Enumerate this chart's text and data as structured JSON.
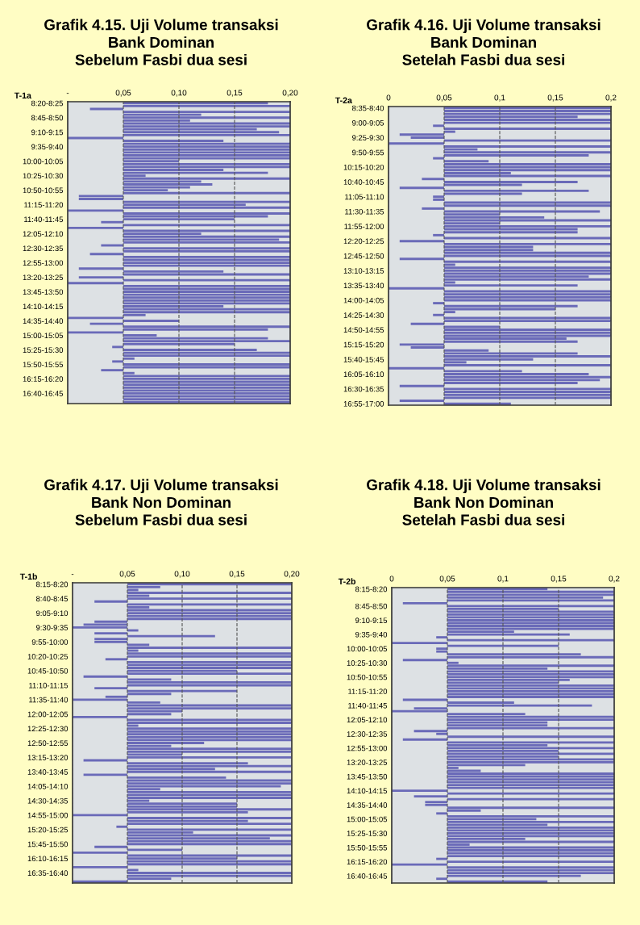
{
  "chart_data": [
    {
      "type": "bar",
      "orientation": "horizontal",
      "title": "Grafik 4.15. Uji Volume transaksi\nBank Dominan\nSebelum Fasbi dua sesi",
      "ylabel": "T-1a",
      "color": "#6a6ab8",
      "grid": "x",
      "line_style": "dashed",
      "xlim": [
        0,
        0.2
      ],
      "xticks": [
        {
          "value": 0,
          "label": "-"
        },
        {
          "value": 0.05,
          "label": "0,05"
        },
        {
          "value": 0.1,
          "label": "0,10"
        },
        {
          "value": 0.15,
          "label": "0,15"
        },
        {
          "value": 0.2,
          "label": "0,20"
        }
      ],
      "categories": [
        "8:20-8:25",
        null,
        null,
        null,
        null,
        "8:45-8:50",
        null,
        null,
        null,
        null,
        "9:10-9:15",
        null,
        null,
        null,
        null,
        "9:35-9:40",
        null,
        null,
        null,
        null,
        "10:00-10:05",
        null,
        null,
        null,
        null,
        "10:25-10:30",
        null,
        null,
        null,
        null,
        "10:50-10:55",
        null,
        null,
        null,
        null,
        "11:15-11:20",
        null,
        null,
        null,
        null,
        "11:40-11:45",
        null,
        null,
        null,
        null,
        "12:05-12:10",
        null,
        null,
        null,
        null,
        "12:30-12:35",
        null,
        null,
        null,
        null,
        "12:55-13:00",
        null,
        null,
        null,
        null,
        "13:20-13:25",
        null,
        null,
        null,
        null,
        "13:45-13:50",
        null,
        null,
        null,
        null,
        "14:10-14:15",
        null,
        null,
        null,
        null,
        "14:35-14:40",
        null,
        null,
        null,
        null,
        "15:00-15:05",
        null,
        null,
        null,
        null,
        "15:25-15:30",
        null,
        null,
        null,
        null,
        "15:50-15:55",
        null,
        null,
        null,
        null,
        "16:15-16:20",
        null,
        null,
        null,
        null,
        "16:40-16:45",
        null,
        null,
        null
      ],
      "values": [
        0.13,
        0.15,
        -0.03,
        0.15,
        0.07,
        0.15,
        0.06,
        0.15,
        0.15,
        0.12,
        0.14,
        0.15,
        -0.05,
        0.09,
        0.15,
        0.15,
        0.15,
        0.15,
        0.15,
        0.15,
        0.05,
        0.15,
        0.15,
        0.09,
        0.13,
        0.02,
        0.15,
        0.07,
        0.08,
        0.06,
        0.04,
        0.15,
        -0.04,
        -0.04,
        0.15,
        0.11,
        0.15,
        -0.05,
        0.15,
        0.13,
        0.1,
        -0.02,
        0.15,
        -0.05,
        0.15,
        0.07,
        0.15,
        0.14,
        0.15,
        -0.02,
        0.15,
        0.15,
        -0.03,
        0.15,
        0.15,
        0.15,
        0.15,
        -0.04,
        0.09,
        0.15,
        -0.04,
        0.15,
        -0.05,
        0.15,
        0.15,
        0.15,
        0.15,
        0.15,
        0.15,
        0.15,
        0.09,
        0.15,
        0.15,
        0.02,
        -0.05,
        0.05,
        -0.03,
        0.15,
        0.13,
        -0.05,
        0.03,
        0.13,
        0.15,
        0.1,
        -0.01,
        0.12,
        0.15,
        0.15,
        0.01,
        -0.01,
        0.15,
        0.15,
        -0.02,
        0.01,
        0.15,
        0.15,
        0.15,
        0.15,
        0.15,
        0.15,
        0.15,
        0.15,
        0.15,
        0.15
      ],
      "base": [
        0.05,
        0.05,
        0.05,
        0.05,
        0.05,
        0.05,
        0.05,
        0.05,
        0.05,
        0.05,
        0.05,
        0.05,
        0.05,
        0.05,
        0.05,
        0.05,
        0.05,
        0.05,
        0.05,
        0.05,
        0.05,
        0.05,
        0.05,
        0.05,
        0.05,
        0.05,
        0.05,
        0.05,
        0.05,
        0.05,
        0.05,
        0.05,
        0.05,
        0.05,
        0.05,
        0.05,
        0.05,
        0.05,
        0.05,
        0.05,
        0.05,
        0.05,
        0.05,
        0.05,
        0.05,
        0.05,
        0.05,
        0.05,
        0.05,
        0.05,
        0.05,
        0.05,
        0.05,
        0.05,
        0.05,
        0.05,
        0.05,
        0.05,
        0.05,
        0.05,
        0.05,
        0.05,
        0.05,
        0.05,
        0.05,
        0.05,
        0.05,
        0.05,
        0.05,
        0.05,
        0.05,
        0.05,
        0.05,
        0.05,
        0.05,
        0.05,
        0.05,
        0.05,
        0.05,
        0.05,
        0.05,
        0.05,
        0.05,
        0.05,
        0.05,
        0.05,
        0.05,
        0.05,
        0.05,
        0.05,
        0.05,
        0.05,
        0.05,
        0.05,
        0.05,
        0.05,
        0.05,
        0.05,
        0.05,
        0.05,
        0.05,
        0.05,
        0.05,
        0.05
      ]
    },
    {
      "type": "bar",
      "orientation": "horizontal",
      "title": "Grafik 4.16. Uji Volume transaksi\nBank Dominan\nSetelah Fasbi dua sesi",
      "ylabel": "T-2a",
      "color": "#6a6ab8",
      "grid": "x",
      "line_style": "dashed",
      "xlim": [
        0,
        0.2
      ],
      "xticks": [
        0,
        {
          "value": 0.05,
          "label": "0,05"
        },
        {
          "value": 0.1,
          "label": "0,1"
        },
        {
          "value": 0.15,
          "label": "0,15"
        },
        {
          "value": 0.2,
          "label": "0,2"
        }
      ],
      "categories": [
        "8:35-8:40",
        null,
        null,
        null,
        null,
        "9:00-9:05",
        null,
        null,
        null,
        null,
        "9:25-9:30",
        null,
        null,
        null,
        null,
        "9:50-9:55",
        null,
        null,
        null,
        null,
        "10:15-10:20",
        null,
        null,
        null,
        null,
        "10:40-10:45",
        null,
        null,
        null,
        null,
        "11:05-11:10",
        null,
        null,
        null,
        null,
        "11:30-11:35",
        null,
        null,
        null,
        null,
        "11:55-12:00",
        null,
        null,
        null,
        null,
        "12:20-12:25",
        null,
        null,
        null,
        null,
        "12:45-12:50",
        null,
        null,
        null,
        null,
        "13:10-13:15",
        null,
        null,
        null,
        null,
        "13:35-13:40",
        null,
        null,
        null,
        null,
        "14:00-14:05",
        null,
        null,
        null,
        null,
        "14:25-14:30",
        null,
        null,
        null,
        null,
        "14:50-14:55",
        null,
        null,
        null,
        null,
        "15:15-15:20",
        null,
        null,
        null,
        null,
        "15:40-15:45",
        null,
        null,
        null,
        null,
        "16:05-16:10",
        null,
        null,
        null,
        null,
        "16:30-16:35",
        null,
        null,
        null,
        null,
        "16:55-17:00"
      ],
      "values": [
        0.15,
        0.15,
        0.15,
        0.12,
        0.15,
        0.15,
        -0.01,
        0.15,
        0.01,
        -0.04,
        -0.03,
        0.15,
        -0.05,
        0.15,
        0.03,
        0.15,
        0.13,
        -0.01,
        0.04,
        0.15,
        0.15,
        0.15,
        0.06,
        0.15,
        -0.02,
        0.12,
        0.07,
        -0.04,
        0.13,
        0.07,
        -0.01,
        -0.01,
        0.15,
        0.15,
        -0.02,
        0.14,
        0.05,
        0.09,
        0.15,
        0.05,
        0.15,
        0.12,
        0.12,
        -0.01,
        0.15,
        -0.04,
        0.15,
        0.08,
        0.08,
        0.15,
        0.15,
        -0.04,
        0.15,
        0.01,
        0.15,
        0.15,
        0.15,
        0.13,
        0.15,
        0.01,
        0.12,
        -0.05,
        0.15,
        0.15,
        0.15,
        0.15,
        -0.01,
        0.12,
        0.1,
        0.01,
        -0.01,
        0.15,
        0.15,
        -0.03,
        0.05,
        0.15,
        0.15,
        0.15,
        0.11,
        0.12,
        -0.04,
        -0.03,
        0.04,
        0.12,
        0.15,
        0.08,
        0.02,
        0.15,
        -0.05,
        0.07,
        0.13,
        0.15,
        0.14,
        0.12,
        -0.04,
        0.15,
        0.15,
        0.15,
        0.15,
        -0.04,
        0.06
      ],
      "base": [
        0.05,
        0.05,
        0.05,
        0.05,
        0.05,
        0.05,
        0.05,
        0.05,
        0.05,
        0.05,
        0.05,
        0.05,
        0.05,
        0.05,
        0.05,
        0.05,
        0.05,
        0.05,
        0.05,
        0.05,
        0.05,
        0.05,
        0.05,
        0.05,
        0.05,
        0.05,
        0.05,
        0.05,
        0.05,
        0.05,
        0.05,
        0.05,
        0.05,
        0.05,
        0.05,
        0.05,
        0.05,
        0.05,
        0.05,
        0.05,
        0.05,
        0.05,
        0.05,
        0.05,
        0.05,
        0.05,
        0.05,
        0.05,
        0.05,
        0.05,
        0.05,
        0.05,
        0.05,
        0.05,
        0.05,
        0.05,
        0.05,
        0.05,
        0.05,
        0.05,
        0.05,
        0.05,
        0.05,
        0.05,
        0.05,
        0.05,
        0.05,
        0.05,
        0.05,
        0.05,
        0.05,
        0.05,
        0.05,
        0.05,
        0.05,
        0.05,
        0.05,
        0.05,
        0.05,
        0.05,
        0.05,
        0.05,
        0.05,
        0.05,
        0.05,
        0.05,
        0.05,
        0.05,
        0.05,
        0.05,
        0.05,
        0.05,
        0.05,
        0.05,
        0.05,
        0.05,
        0.05,
        0.05,
        0.05,
        0.05,
        0.05
      ]
    },
    {
      "type": "bar",
      "orientation": "horizontal",
      "title": "Grafik 4.17. Uji Volume transaksi\nBank Non Dominan\nSebelum Fasbi dua sesi",
      "ylabel": "T-1b",
      "color": "#6a6ab8",
      "grid": "x",
      "line_style": "dashed",
      "xlim": [
        0,
        0.2
      ],
      "xticks": [
        {
          "value": 0,
          "label": "-"
        },
        {
          "value": 0.05,
          "label": "0,05"
        },
        {
          "value": 0.1,
          "label": "0,10"
        },
        {
          "value": 0.15,
          "label": "0,15"
        },
        {
          "value": 0.2,
          "label": "0,20"
        }
      ],
      "categories": [
        "8:15-8:20",
        null,
        null,
        null,
        null,
        "8:40-8:45",
        null,
        null,
        null,
        null,
        "9:05-9:10",
        null,
        null,
        null,
        null,
        "9:30-9:35",
        null,
        null,
        null,
        null,
        "9:55-10:00",
        null,
        null,
        null,
        null,
        "10:20-10:25",
        null,
        null,
        null,
        null,
        "10:45-10:50",
        null,
        null,
        null,
        null,
        "11:10-11:15",
        null,
        null,
        null,
        null,
        "11:35-11:40",
        null,
        null,
        null,
        null,
        "12:00-12:05",
        null,
        null,
        null,
        null,
        "12:25-12:30",
        null,
        null,
        null,
        null,
        "12:50-12:55",
        null,
        null,
        null,
        null,
        "13:15-13:20",
        null,
        null,
        null,
        null,
        "13:40-13:45",
        null,
        null,
        null,
        null,
        "14:05-14:10",
        null,
        null,
        null,
        null,
        "14:30-14:35",
        null,
        null,
        null,
        null,
        "14:55-15:00",
        null,
        null,
        null,
        null,
        "15:20-15:25",
        null,
        null,
        null,
        null,
        "15:45-15:50",
        null,
        null,
        null,
        null,
        "16:10-16:15",
        null,
        null,
        null,
        null,
        "16:35-16:40",
        null,
        null,
        null
      ],
      "values": [
        0.15,
        0.03,
        0.01,
        0.15,
        0.02,
        0.15,
        -0.03,
        0.15,
        0.02,
        0.15,
        0.15,
        0.15,
        0.15,
        -0.03,
        -0.04,
        -0.05,
        0.01,
        -0.03,
        0.08,
        -0.03,
        -0.03,
        0.02,
        0.15,
        0.01,
        0.15,
        0.15,
        -0.02,
        0.15,
        0.15,
        0.15,
        0.1,
        0.15,
        -0.04,
        0.04,
        0.15,
        0.15,
        -0.03,
        0.1,
        0.04,
        -0.02,
        -0.05,
        0.03,
        0.15,
        0.15,
        0.05,
        0.04,
        -0.05,
        0.15,
        0.15,
        0.01,
        0.15,
        0.15,
        0.15,
        0.15,
        0.15,
        0.07,
        0.04,
        0.15,
        0.15,
        0.05,
        0.15,
        -0.04,
        0.11,
        0.15,
        0.08,
        0.15,
        -0.04,
        0.09,
        0.15,
        0.15,
        0.14,
        0.03,
        0.15,
        0.15,
        0.15,
        0.02,
        0.1,
        0.1,
        0.15,
        0.11,
        -0.05,
        0.15,
        0.11,
        0.15,
        -0.01,
        0.15,
        0.06,
        0.15,
        0.13,
        0.15,
        0.15,
        -0.03,
        0.05,
        -0.05,
        0.15,
        0.1,
        0.15,
        0.15,
        -0.05,
        0.01,
        0.15,
        0.15,
        0.04,
        -0.05
      ],
      "base": [
        0.05,
        0.05,
        0.05,
        0.05,
        0.05,
        0.05,
        0.05,
        0.05,
        0.05,
        0.05,
        0.05,
        0.05,
        0.05,
        0.05,
        0.05,
        0.05,
        0.05,
        0.05,
        0.05,
        0.05,
        0.05,
        0.05,
        0.05,
        0.05,
        0.05,
        0.05,
        0.05,
        0.05,
        0.05,
        0.05,
        0.05,
        0.05,
        0.05,
        0.05,
        0.05,
        0.05,
        0.05,
        0.05,
        0.05,
        0.05,
        0.05,
        0.05,
        0.05,
        0.05,
        0.05,
        0.05,
        0.05,
        0.05,
        0.05,
        0.05,
        0.05,
        0.05,
        0.05,
        0.05,
        0.05,
        0.05,
        0.05,
        0.05,
        0.05,
        0.05,
        0.05,
        0.05,
        0.05,
        0.05,
        0.05,
        0.05,
        0.05,
        0.05,
        0.05,
        0.05,
        0.05,
        0.05,
        0.05,
        0.05,
        0.05,
        0.05,
        0.05,
        0.05,
        0.05,
        0.05,
        0.05,
        0.05,
        0.05,
        0.05,
        0.05,
        0.05,
        0.05,
        0.05,
        0.05,
        0.05,
        0.05,
        0.05,
        0.05,
        0.05,
        0.05,
        0.05,
        0.05,
        0.05,
        0.05,
        0.05,
        0.05,
        0.05,
        0.05,
        0.05
      ]
    },
    {
      "type": "bar",
      "orientation": "horizontal",
      "title": "Grafik 4.18. Uji Volume transaksi\nBank Non Dominan\nSetelah Fasbi dua sesi",
      "ylabel": "T-2b",
      "color": "#6a6ab8",
      "grid": "x",
      "line_style": "dashed",
      "xlim": [
        0,
        0.2
      ],
      "xticks": [
        0,
        {
          "value": 0.05,
          "label": "0,05"
        },
        {
          "value": 0.1,
          "label": "0,1"
        },
        {
          "value": 0.15,
          "label": "0,15"
        },
        {
          "value": 0.2,
          "label": "0,2"
        }
      ],
      "categories": [
        "8:15-8:20",
        null,
        null,
        null,
        null,
        null,
        "8:45-8:50",
        null,
        null,
        null,
        null,
        "9:10-9:15",
        null,
        null,
        null,
        null,
        "9:35-9:40",
        null,
        null,
        null,
        null,
        "10:00-10:05",
        null,
        null,
        null,
        null,
        "10:25-10:30",
        null,
        null,
        null,
        null,
        "10:50-10:55",
        null,
        null,
        null,
        null,
        "11:15-11:20",
        null,
        null,
        null,
        null,
        "11:40-11:45",
        null,
        null,
        null,
        null,
        "12:05-12:10",
        null,
        null,
        null,
        null,
        "12:30-12:35",
        null,
        null,
        null,
        null,
        "12:55-13:00",
        null,
        null,
        null,
        null,
        "13:20-13:25",
        null,
        null,
        null,
        null,
        "13:45-13:50",
        null,
        null,
        null,
        null,
        "14:10-14:15",
        null,
        null,
        null,
        null,
        "14:35-14:40",
        null,
        null,
        null,
        null,
        "15:00-15:05",
        null,
        null,
        null,
        null,
        "15:25-15:30",
        null,
        null,
        null,
        null,
        "15:50-15:55",
        null,
        null,
        null,
        null,
        "16:15-16:20",
        null,
        null,
        null,
        null,
        "16:40-16:45",
        null,
        null
      ],
      "values": [
        0.09,
        0.15,
        0.15,
        0.14,
        0.15,
        -0.04,
        0.15,
        0.1,
        0.15,
        0.15,
        0.15,
        0.15,
        0.15,
        0.15,
        0.15,
        0.06,
        0.11,
        -0.01,
        0.15,
        -0.05,
        0.1,
        -0.01,
        -0.01,
        0.12,
        0.15,
        -0.04,
        0.01,
        0.15,
        0.09,
        0.15,
        0.15,
        0.15,
        0.11,
        0.1,
        0.15,
        0.15,
        0.15,
        0.15,
        0.15,
        -0.04,
        0.06,
        0.13,
        -0.03,
        -0.05,
        0.07,
        0.15,
        0.15,
        0.09,
        0.09,
        0.15,
        -0.03,
        -0.01,
        0.15,
        -0.04,
        0.15,
        0.09,
        0.15,
        0.1,
        0.15,
        0.1,
        0.15,
        0.15,
        0.07,
        0.01,
        0.03,
        0.15,
        0.15,
        0.15,
        0.15,
        0.15,
        0.15,
        -0.05,
        0.15,
        -0.03,
        0.15,
        -0.02,
        -0.02,
        0.15,
        0.03,
        -0.01,
        0.15,
        0.08,
        0.15,
        0.09,
        0.15,
        0.15,
        0.15,
        0.15,
        0.07,
        0.15,
        0.02,
        0.15,
        0.15,
        0.15,
        0.15,
        -0.01,
        0.15,
        -0.05,
        0.15,
        0.15,
        0.15,
        0.12,
        -0.01,
        0.09
      ],
      "base": [
        0.05,
        0.05,
        0.05,
        0.05,
        0.05,
        0.05,
        0.05,
        0.05,
        0.05,
        0.05,
        0.05,
        0.05,
        0.05,
        0.05,
        0.05,
        0.05,
        0.05,
        0.05,
        0.05,
        0.05,
        0.05,
        0.05,
        0.05,
        0.05,
        0.05,
        0.05,
        0.05,
        0.05,
        0.05,
        0.05,
        0.05,
        0.05,
        0.05,
        0.05,
        0.05,
        0.05,
        0.05,
        0.05,
        0.05,
        0.05,
        0.05,
        0.05,
        0.05,
        0.05,
        0.05,
        0.05,
        0.05,
        0.05,
        0.05,
        0.05,
        0.05,
        0.05,
        0.05,
        0.05,
        0.05,
        0.05,
        0.05,
        0.05,
        0.05,
        0.05,
        0.05,
        0.05,
        0.05,
        0.05,
        0.05,
        0.05,
        0.05,
        0.05,
        0.05,
        0.05,
        0.05,
        0.05,
        0.05,
        0.05,
        0.05,
        0.05,
        0.05,
        0.05,
        0.05,
        0.05,
        0.05,
        0.05,
        0.05,
        0.05,
        0.05,
        0.05,
        0.05,
        0.05,
        0.05,
        0.05,
        0.05,
        0.05,
        0.05,
        0.05,
        0.05,
        0.05,
        0.05,
        0.05,
        0.05,
        0.05,
        0.05,
        0.05,
        0.05,
        0.05
      ]
    }
  ]
}
